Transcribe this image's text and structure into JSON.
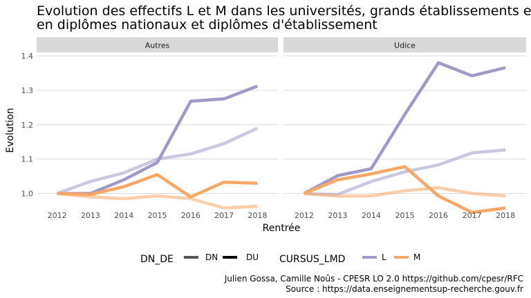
{
  "chart_data": {
    "type": "line",
    "title_lines": [
      "Evolution des effectifs L et M dans les universités, grands établissements et",
      "en diplômes nationaux et diplômes d'établissement"
    ],
    "xlabel": "Rentrée",
    "ylabel": "Evolution",
    "x": [
      2012,
      2013,
      2014,
      2015,
      2016,
      2017,
      2018
    ],
    "x_ticks": [
      "2012",
      "2013",
      "2014",
      "2015",
      "2016",
      "2017",
      "2018"
    ],
    "ylim": [
      0.965,
      1.41
    ],
    "y_ticks": [
      1.0,
      1.1,
      1.2,
      1.3,
      1.4
    ],
    "y_tick_labels": [
      "1.0",
      "1.1",
      "1.2",
      "1.3",
      "1.4"
    ],
    "grid": true,
    "colors": {
      "L": "#9f9ac8",
      "M": "#f9a764"
    },
    "panels": [
      {
        "name": "Autres",
        "series": [
          {
            "cursus": "L",
            "dn_de": "DN",
            "values": [
              1.0,
              1.0,
              1.04,
              1.09,
              1.268,
              1.275,
              1.312
            ]
          },
          {
            "cursus": "L",
            "dn_de": "DU",
            "values": [
              1.0,
              1.035,
              1.06,
              1.1,
              1.115,
              1.145,
              1.19
            ]
          },
          {
            "cursus": "M",
            "dn_de": "DN",
            "values": [
              1.0,
              0.997,
              1.02,
              1.055,
              0.99,
              1.033,
              1.03
            ]
          },
          {
            "cursus": "M",
            "dn_de": "DU",
            "values": [
              1.0,
              0.99,
              0.985,
              0.993,
              0.985,
              0.958,
              0.963
            ]
          }
        ]
      },
      {
        "name": "Udice",
        "series": [
          {
            "cursus": "L",
            "dn_de": "DN",
            "values": [
              1.0,
              1.052,
              1.072,
              1.23,
              1.38,
              1.342,
              1.366
            ]
          },
          {
            "cursus": "L",
            "dn_de": "DU",
            "values": [
              1.0,
              0.997,
              1.035,
              1.063,
              1.083,
              1.118,
              1.127
            ]
          },
          {
            "cursus": "M",
            "dn_de": "DN",
            "values": [
              1.0,
              1.04,
              1.057,
              1.078,
              0.993,
              0.945,
              0.958
            ]
          },
          {
            "cursus": "M",
            "dn_de": "DU",
            "values": [
              1.0,
              0.992,
              0.993,
              1.008,
              1.017,
              1.0,
              0.993
            ]
          }
        ]
      }
    ],
    "legend": {
      "placement": "bottom",
      "dn_de_title": "DN_DE",
      "dn_de_items": [
        "DN",
        "DU"
      ],
      "cursus_title": "CURSUS_LMD",
      "cursus_items": [
        "L",
        "M"
      ]
    },
    "caption_lines": [
      "Julien Gossa, Camille Noûs - CPESR LO 2.0 https://github.com/cpesr/RFC",
      "Source : https://data.enseignementsup-recherche.gouv.fr"
    ]
  }
}
